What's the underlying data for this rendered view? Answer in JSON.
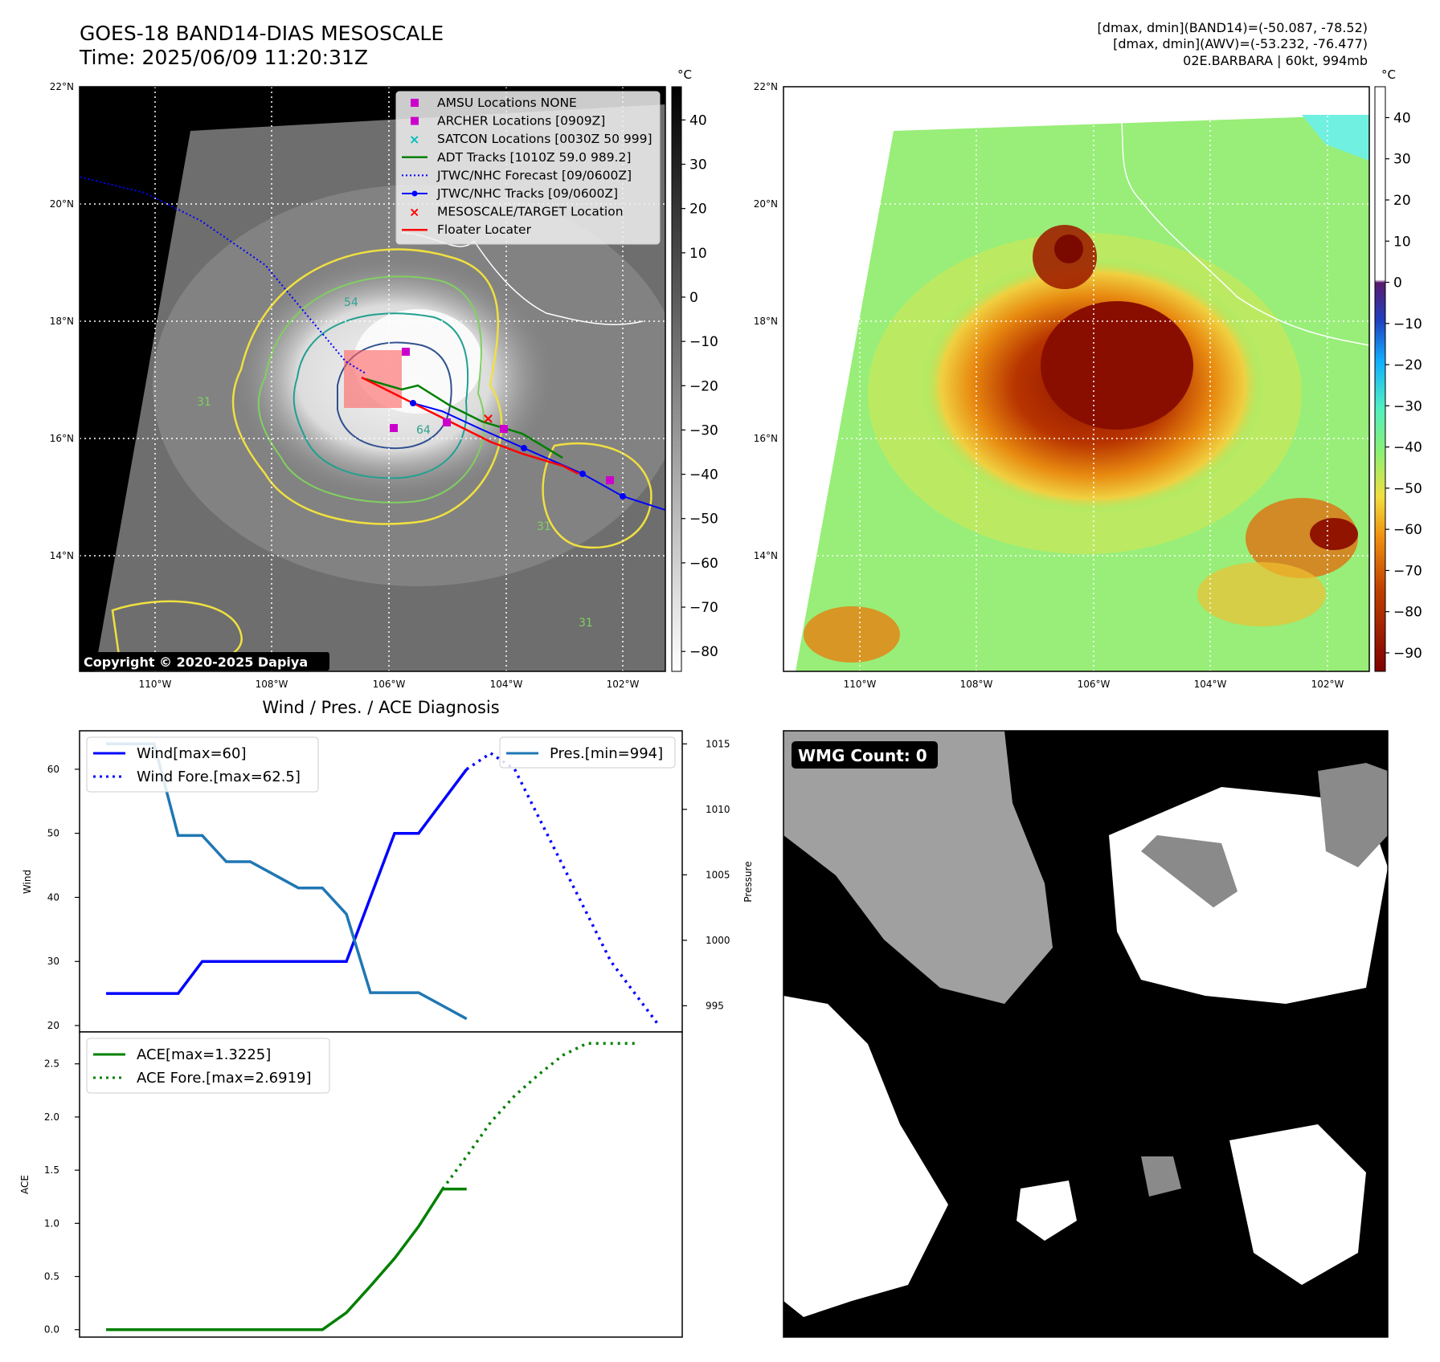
{
  "header": {
    "title_line1": "GOES-18 BAND14-DIAS MESOSCALE",
    "title_line2": "Time: 2025/06/09 11:20:31Z",
    "info_line1": "[dmax, dmin](BAND14)=(-50.087, -78.52)",
    "info_line2": "[dmax, dmin](AWV)=(-53.232, -76.477)",
    "info_line3": "02E.BARBARA | 60kt, 994mb"
  },
  "map_left": {
    "lat_labels": [
      "22°N",
      "20°N",
      "18°N",
      "16°N",
      "14°N"
    ],
    "lon_labels": [
      "110°W",
      "108°W",
      "106°W",
      "104°W",
      "102°W"
    ],
    "colorbar_unit": "°C",
    "colorbar_ticks": [
      "40",
      "30",
      "20",
      "10",
      "0",
      "−10",
      "−20",
      "−30",
      "−40",
      "−50",
      "−60",
      "−70",
      "−80"
    ],
    "copyright": "Copyright © 2020-2025 Dapiya",
    "contour_labels": [
      "54",
      "64",
      "31",
      "31",
      "31"
    ],
    "legend": [
      {
        "label": "AMSU Locations NONE",
        "marker": "square",
        "color": "#cc00cc"
      },
      {
        "label": "ARCHER Locations [0909Z]",
        "marker": "square",
        "color": "#cc00cc"
      },
      {
        "label": "SATCON Locations [0030Z 50 999]",
        "marker": "x",
        "color": "#00bfbf"
      },
      {
        "label": "ADT Tracks [1010Z 59.0 989.2]",
        "marker": "line",
        "color": "#008000"
      },
      {
        "label": "JTWC/NHC Forecast [09/0600Z]",
        "marker": "dotted",
        "color": "#0000ff"
      },
      {
        "label": "JTWC/NHC Tracks [09/0600Z]",
        "marker": "line-dot",
        "color": "#0000ff"
      },
      {
        "label": "MESOSCALE/TARGET Location",
        "marker": "x",
        "color": "#ff0000"
      },
      {
        "label": "Floater Locater",
        "marker": "line",
        "color": "#ff0000"
      }
    ]
  },
  "map_right": {
    "lat_labels": [
      "22°N",
      "20°N",
      "18°N",
      "16°N",
      "14°N"
    ],
    "lon_labels": [
      "110°W",
      "108°W",
      "106°W",
      "104°W",
      "102°W"
    ],
    "colorbar_unit": "°C",
    "colorbar_ticks": [
      "40",
      "30",
      "20",
      "10",
      "0",
      "−10",
      "−20",
      "−30",
      "−40",
      "−50",
      "−60",
      "−70",
      "−80",
      "−90"
    ]
  },
  "diagnosis": {
    "title": "Wind / Pres. / ACE Diagnosis",
    "wind_ylabel": "Wind",
    "pres_ylabel": "Pressure",
    "ace_ylabel": "ACE",
    "legend_wind": "Wind[max=60]",
    "legend_wind_fore": "Wind Fore.[max=62.5]",
    "legend_pres": "Pres.[min=994]",
    "legend_ace": "ACE[max=1.3225]",
    "legend_ace_fore": "ACE Fore.[max=2.6919]"
  },
  "wmg": {
    "label": "WMG Count: 0"
  },
  "chart_data": [
    {
      "type": "line",
      "series": [
        {
          "name": "Wind[max=60]",
          "axis": "left",
          "style": "solid",
          "color": "#0000ff",
          "x": [
            0,
            1,
            2,
            3,
            4,
            5,
            6,
            7,
            8,
            9,
            10,
            11,
            12,
            13,
            14,
            15
          ],
          "values": [
            25,
            25,
            25,
            25,
            30,
            30,
            30,
            30,
            30,
            30,
            30,
            40,
            50,
            50,
            55,
            60
          ]
        },
        {
          "name": "Wind Fore.[max=62.5]",
          "axis": "left",
          "style": "dotted",
          "color": "#0000ff",
          "x": [
            15,
            16,
            17,
            18,
            19,
            20,
            21,
            22,
            23
          ],
          "values": [
            60,
            62.5,
            60,
            52.5,
            45,
            37.5,
            30,
            25,
            20
          ]
        },
        {
          "name": "Pres.[min=994]",
          "axis": "right",
          "style": "solid",
          "color": "#1f77b4",
          "x": [
            0,
            1,
            2,
            3,
            4,
            5,
            6,
            7,
            8,
            9,
            10,
            11,
            12,
            13,
            14,
            15
          ],
          "values": [
            1015,
            1015,
            1015,
            1008,
            1008,
            1006,
            1006,
            1005,
            1004,
            1004,
            1002,
            996,
            996,
            996,
            995,
            994
          ]
        }
      ],
      "ylabel": "Wind",
      "ylim": [
        19,
        66
      ],
      "y2label": "Pressure",
      "y2lim": [
        993,
        1016
      ],
      "yticks": [
        20,
        30,
        40,
        50,
        60
      ],
      "y2ticks": [
        995,
        1000,
        1005,
        1010,
        1015
      ]
    },
    {
      "type": "line",
      "series": [
        {
          "name": "ACE[max=1.3225]",
          "style": "solid",
          "color": "#008000",
          "x": [
            0,
            1,
            2,
            3,
            4,
            5,
            6,
            7,
            8,
            9,
            10,
            11,
            12,
            13,
            14,
            15
          ],
          "values": [
            0,
            0,
            0,
            0,
            0,
            0,
            0,
            0,
            0,
            0,
            0.16,
            0.41,
            0.67,
            0.97,
            1.3225,
            1.3225
          ]
        },
        {
          "name": "ACE Fore.[max=2.6919]",
          "style": "dotted",
          "color": "#008000",
          "x": [
            14,
            15,
            16,
            17,
            18,
            19,
            20,
            21,
            22
          ],
          "values": [
            1.3225,
            1.63,
            1.95,
            2.2,
            2.4,
            2.58,
            2.6919,
            2.6919,
            2.6919
          ]
        }
      ],
      "ylabel": "ACE",
      "ylim": [
        -0.07,
        2.8
      ],
      "yticks": [
        0.0,
        0.5,
        1.0,
        1.5,
        2.0,
        2.5
      ]
    }
  ]
}
